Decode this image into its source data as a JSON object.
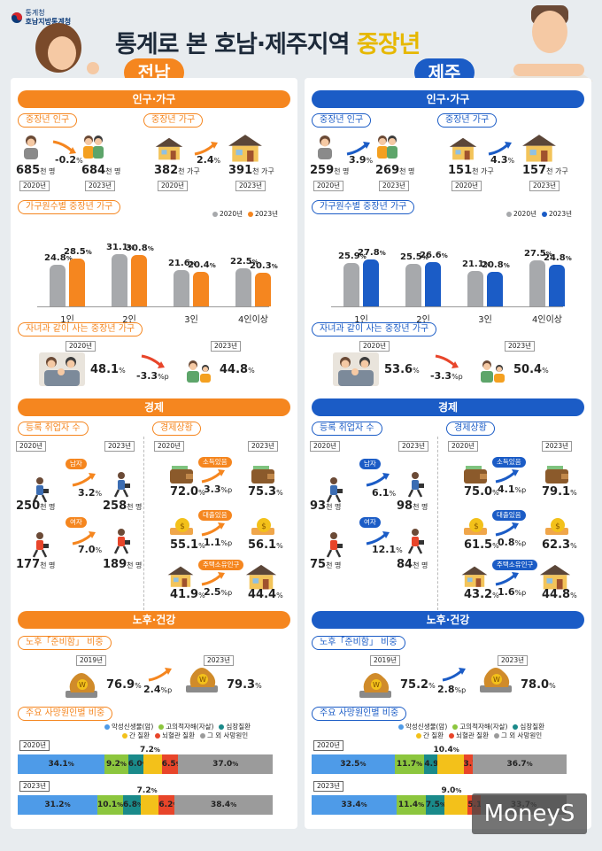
{
  "header": {
    "agency_line1": "통계청",
    "agency_line2": "호남지방통계청",
    "title_main": "통계로 본 호남·제주지역 ",
    "title_highlight": "중장년"
  },
  "colors": {
    "jeonnam_accent": "#f5861f",
    "jeju_accent": "#1b5cc6",
    "grey_2020": "#a7a9ac",
    "death_cancer": "#4e9be8",
    "death_suicide": "#8cc63e",
    "death_heart": "#1a8a8a",
    "death_liver": "#f3c11a",
    "death_brain": "#e8452a",
    "death_other": "#9b9b9b"
  },
  "jeonnam": {
    "tag": "전남",
    "pop": {
      "section": "인구·가구",
      "pop_tab": "중장년 인구",
      "pop_2020": "685",
      "pop_2023": "684",
      "pop_unit": "천 명",
      "pop_change": "-0.2",
      "pop_change_unit": "%",
      "y2020": "2020년",
      "y2023": "2023년",
      "hh_tab": "중장년 가구",
      "hh_2020": "382",
      "hh_2023": "391",
      "hh_unit": "천 가구",
      "hh_change": "2.4",
      "hh_change_unit": "%"
    },
    "size_tab": "가구원수별 중장년 가구",
    "legend_2020": "2020년",
    "legend_2023": "2023년",
    "chart_data": {
      "type": "bar",
      "categories": [
        "1인",
        "2인",
        "3인",
        "4인이상"
      ],
      "series": [
        {
          "name": "2020년",
          "values": [
            24.8,
            31.1,
            21.6,
            22.5
          ]
        },
        {
          "name": "2023년",
          "values": [
            28.5,
            30.8,
            20.4,
            20.3
          ]
        }
      ],
      "unit": "%"
    },
    "children_tab": "자녀과 같이 사는 중장년 가구",
    "children_2020": "48.1",
    "children_2023": "44.8",
    "children_change": "-3.3",
    "children_change_unit": "%p",
    "pct": "%",
    "econ": {
      "section": "경제",
      "emp_tab": "등록 취업자 수",
      "male": "남자",
      "female": "여자",
      "male_2020": "250",
      "male_2023": "258",
      "male_change": "3.2",
      "female_2020": "177",
      "female_2023": "189",
      "female_change": "7.0",
      "unit": "천 명",
      "status_tab": "경제상황",
      "income_label": "소득있음",
      "income_2020": "72.0",
      "income_2023": "75.3",
      "income_change": "3.3",
      "loan_label": "대출있음",
      "loan_2020": "55.1",
      "loan_2023": "56.1",
      "loan_change": "1.1",
      "house_label": "주택소유인구",
      "house_2020": "41.9",
      "house_2023": "44.4",
      "house_change": "2.5",
      "pp": "%p"
    },
    "old": {
      "section": "노후·건강",
      "prep_tab": "노후「준비함」 비중",
      "y2019": "2019년",
      "y2023": "2023년",
      "prep_2019": "76.9",
      "prep_2023": "79.3",
      "prep_change": "2.4"
    },
    "death_tab": "주요 사망원인별 비중",
    "death_legend": [
      "악성신생물(암)",
      "고의적자해(자살)",
      "심장질환",
      "간 질환",
      "뇌혈관 질환",
      "그 외 사망원인"
    ],
    "death_2020_label": "2020년",
    "death_2023_label": "2023년",
    "death_2020": [
      34.1,
      9.2,
      6.0,
      7.2,
      6.5,
      37.0
    ],
    "death_2023": [
      31.2,
      10.1,
      6.8,
      7.2,
      6.2,
      38.4
    ],
    "death_2020_text": [
      "34.1",
      "9.2",
      "6.0",
      "7.2",
      "6.5",
      "37.0"
    ],
    "death_2023_text": [
      "31.2",
      "10.1",
      "6.8",
      "7.2",
      "6.2",
      "38.4"
    ]
  },
  "jeju": {
    "tag": "제주",
    "pop": {
      "section": "인구·가구",
      "pop_tab": "중장년 인구",
      "pop_2020": "259",
      "pop_2023": "269",
      "pop_unit": "천 명",
      "pop_change": "3.9",
      "pop_change_unit": "%",
      "y2020": "2020년",
      "y2023": "2023년",
      "hh_tab": "중장년 가구",
      "hh_2020": "151",
      "hh_2023": "157",
      "hh_unit": "천 가구",
      "hh_change": "4.3",
      "hh_change_unit": "%"
    },
    "size_tab": "가구원수별 중장년 가구",
    "legend_2020": "2020년",
    "legend_2023": "2023년",
    "chart_data": {
      "type": "bar",
      "categories": [
        "1인",
        "2인",
        "3인",
        "4인이상"
      ],
      "series": [
        {
          "name": "2020년",
          "values": [
            25.9,
            25.5,
            21.1,
            27.5
          ]
        },
        {
          "name": "2023년",
          "values": [
            27.8,
            26.6,
            20.8,
            24.8
          ]
        }
      ],
      "unit": "%"
    },
    "children_tab": "자녀과 같이 사는 중장년 가구",
    "children_2020": "53.6",
    "children_2023": "50.4",
    "children_change": "-3.3",
    "children_change_unit": "%p",
    "pct": "%",
    "econ": {
      "section": "경제",
      "emp_tab": "등록 취업자 수",
      "male": "남자",
      "female": "여자",
      "male_2020": "93",
      "male_2023": "98",
      "male_change": "6.1",
      "female_2020": "75",
      "female_2023": "84",
      "female_change": "12.1",
      "unit": "천 명",
      "status_tab": "경제상황",
      "income_label": "소득있음",
      "income_2020": "75.0",
      "income_2023": "79.1",
      "income_change": "4.1",
      "loan_label": "대출있음",
      "loan_2020": "61.5",
      "loan_2023": "62.3",
      "loan_change": "0.8",
      "house_label": "주택소유인구",
      "house_2020": "43.2",
      "house_2023": "44.8",
      "house_change": "1.6",
      "pp": "%p"
    },
    "old": {
      "section": "노후·건강",
      "prep_tab": "노후「준비함」 비중",
      "y2019": "2019년",
      "y2023": "2023년",
      "prep_2019": "75.2",
      "prep_2023": "78.0",
      "prep_change": "2.8"
    },
    "death_tab": "주요 사망원인별 비중",
    "death_legend": [
      "악성신생물(암)",
      "고의적자해(자살)",
      "심장질환",
      "간 질환",
      "뇌혈관 질환",
      "그 외 사망원인"
    ],
    "death_2020_label": "2020년",
    "death_2023_label": "2023년",
    "death_2020": [
      32.5,
      11.7,
      4.9,
      10.4,
      3.7,
      36.7
    ],
    "death_2023": [
      33.4,
      11.4,
      7.5,
      9.0,
      5.1,
      33.7
    ],
    "death_2020_text": [
      "32.5",
      "11.7",
      "4.9",
      "10.4",
      "3.7",
      "36.7"
    ],
    "death_2023_text": [
      "33.4",
      "11.4",
      "7.5",
      "9.0",
      "5.1",
      "33.7"
    ]
  },
  "watermark": "MoneyS"
}
